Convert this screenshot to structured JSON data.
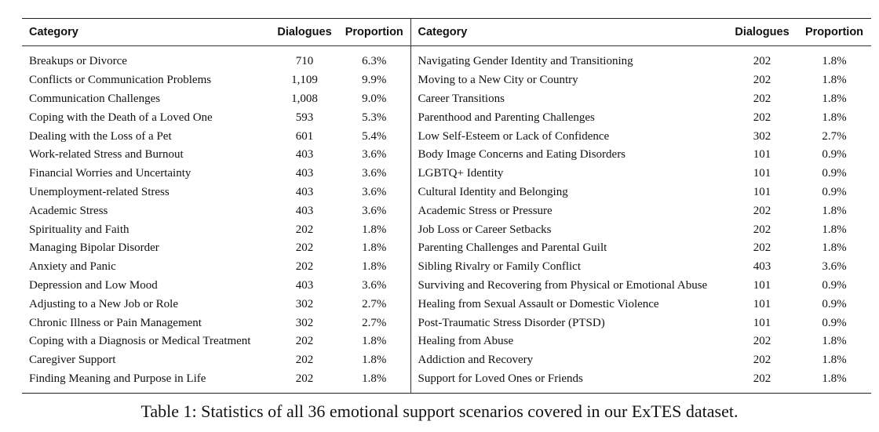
{
  "table": {
    "headers": {
      "category": "Category",
      "dialogues": "Dialogues",
      "proportion": "Proportion"
    },
    "rows": [
      {
        "left": {
          "category": "Breakups or Divorce",
          "dialogues": "710",
          "proportion": "6.3%"
        },
        "right": {
          "category": "Navigating Gender Identity and Transitioning",
          "dialogues": "202",
          "proportion": "1.8%"
        }
      },
      {
        "left": {
          "category": "Conflicts or Communication Problems",
          "dialogues": "1,109",
          "proportion": "9.9%"
        },
        "right": {
          "category": "Moving to a New City or Country",
          "dialogues": "202",
          "proportion": "1.8%"
        }
      },
      {
        "left": {
          "category": "Communication Challenges",
          "dialogues": "1,008",
          "proportion": "9.0%"
        },
        "right": {
          "category": "Career Transitions",
          "dialogues": "202",
          "proportion": "1.8%"
        }
      },
      {
        "left": {
          "category": "Coping with the Death of a Loved One",
          "dialogues": "593",
          "proportion": "5.3%"
        },
        "right": {
          "category": "Parenthood and Parenting Challenges",
          "dialogues": "202",
          "proportion": "1.8%"
        }
      },
      {
        "left": {
          "category": "Dealing with the Loss of a Pet",
          "dialogues": "601",
          "proportion": "5.4%"
        },
        "right": {
          "category": "Low Self-Esteem or Lack of Confidence",
          "dialogues": "302",
          "proportion": "2.7%"
        }
      },
      {
        "left": {
          "category": "Work-related Stress and Burnout",
          "dialogues": "403",
          "proportion": "3.6%"
        },
        "right": {
          "category": "Body Image Concerns and Eating Disorders",
          "dialogues": "101",
          "proportion": "0.9%"
        }
      },
      {
        "left": {
          "category": "Financial Worries and Uncertainty",
          "dialogues": "403",
          "proportion": "3.6%"
        },
        "right": {
          "category": "LGBTQ+ Identity",
          "dialogues": "101",
          "proportion": "0.9%"
        }
      },
      {
        "left": {
          "category": "Unemployment-related Stress",
          "dialogues": "403",
          "proportion": "3.6%"
        },
        "right": {
          "category": "Cultural Identity and Belonging",
          "dialogues": "101",
          "proportion": "0.9%"
        }
      },
      {
        "left": {
          "category": "Academic Stress",
          "dialogues": "403",
          "proportion": "3.6%"
        },
        "right": {
          "category": "Academic Stress or Pressure",
          "dialogues": "202",
          "proportion": "1.8%"
        }
      },
      {
        "left": {
          "category": "Spirituality and Faith",
          "dialogues": "202",
          "proportion": "1.8%"
        },
        "right": {
          "category": "Job Loss or Career Setbacks",
          "dialogues": "202",
          "proportion": "1.8%"
        }
      },
      {
        "left": {
          "category": "Managing Bipolar Disorder",
          "dialogues": "202",
          "proportion": "1.8%"
        },
        "right": {
          "category": "Parenting Challenges and Parental Guilt",
          "dialogues": "202",
          "proportion": "1.8%"
        }
      },
      {
        "left": {
          "category": "Anxiety and Panic",
          "dialogues": "202",
          "proportion": "1.8%"
        },
        "right": {
          "category": "Sibling Rivalry or Family Conflict",
          "dialogues": "403",
          "proportion": "3.6%"
        }
      },
      {
        "left": {
          "category": "Depression and Low Mood",
          "dialogues": "403",
          "proportion": "3.6%"
        },
        "right": {
          "category": "Surviving and Recovering from Physical or Emotional Abuse",
          "dialogues": "101",
          "proportion": "0.9%"
        }
      },
      {
        "left": {
          "category": "Adjusting to a New Job or Role",
          "dialogues": "302",
          "proportion": "2.7%"
        },
        "right": {
          "category": "Healing from Sexual Assault or Domestic Violence",
          "dialogues": "101",
          "proportion": "0.9%"
        }
      },
      {
        "left": {
          "category": "Chronic Illness or Pain Management",
          "dialogues": "302",
          "proportion": "2.7%"
        },
        "right": {
          "category": "Post-Traumatic Stress Disorder (PTSD)",
          "dialogues": "101",
          "proportion": "0.9%"
        }
      },
      {
        "left": {
          "category": "Coping with a Diagnosis or Medical Treatment",
          "dialogues": "202",
          "proportion": "1.8%"
        },
        "right": {
          "category": "Healing from Abuse",
          "dialogues": "202",
          "proportion": "1.8%"
        }
      },
      {
        "left": {
          "category": "Caregiver Support",
          "dialogues": "202",
          "proportion": "1.8%"
        },
        "right": {
          "category": "Addiction and Recovery",
          "dialogues": "202",
          "proportion": "1.8%"
        }
      },
      {
        "left": {
          "category": "Finding Meaning and Purpose in Life",
          "dialogues": "202",
          "proportion": "1.8%"
        },
        "right": {
          "category": "Support for Loved Ones or Friends",
          "dialogues": "202",
          "proportion": "1.8%"
        }
      }
    ]
  },
  "caption": "Table 1: Statistics of all 36 emotional support scenarios covered in our ExTES dataset."
}
